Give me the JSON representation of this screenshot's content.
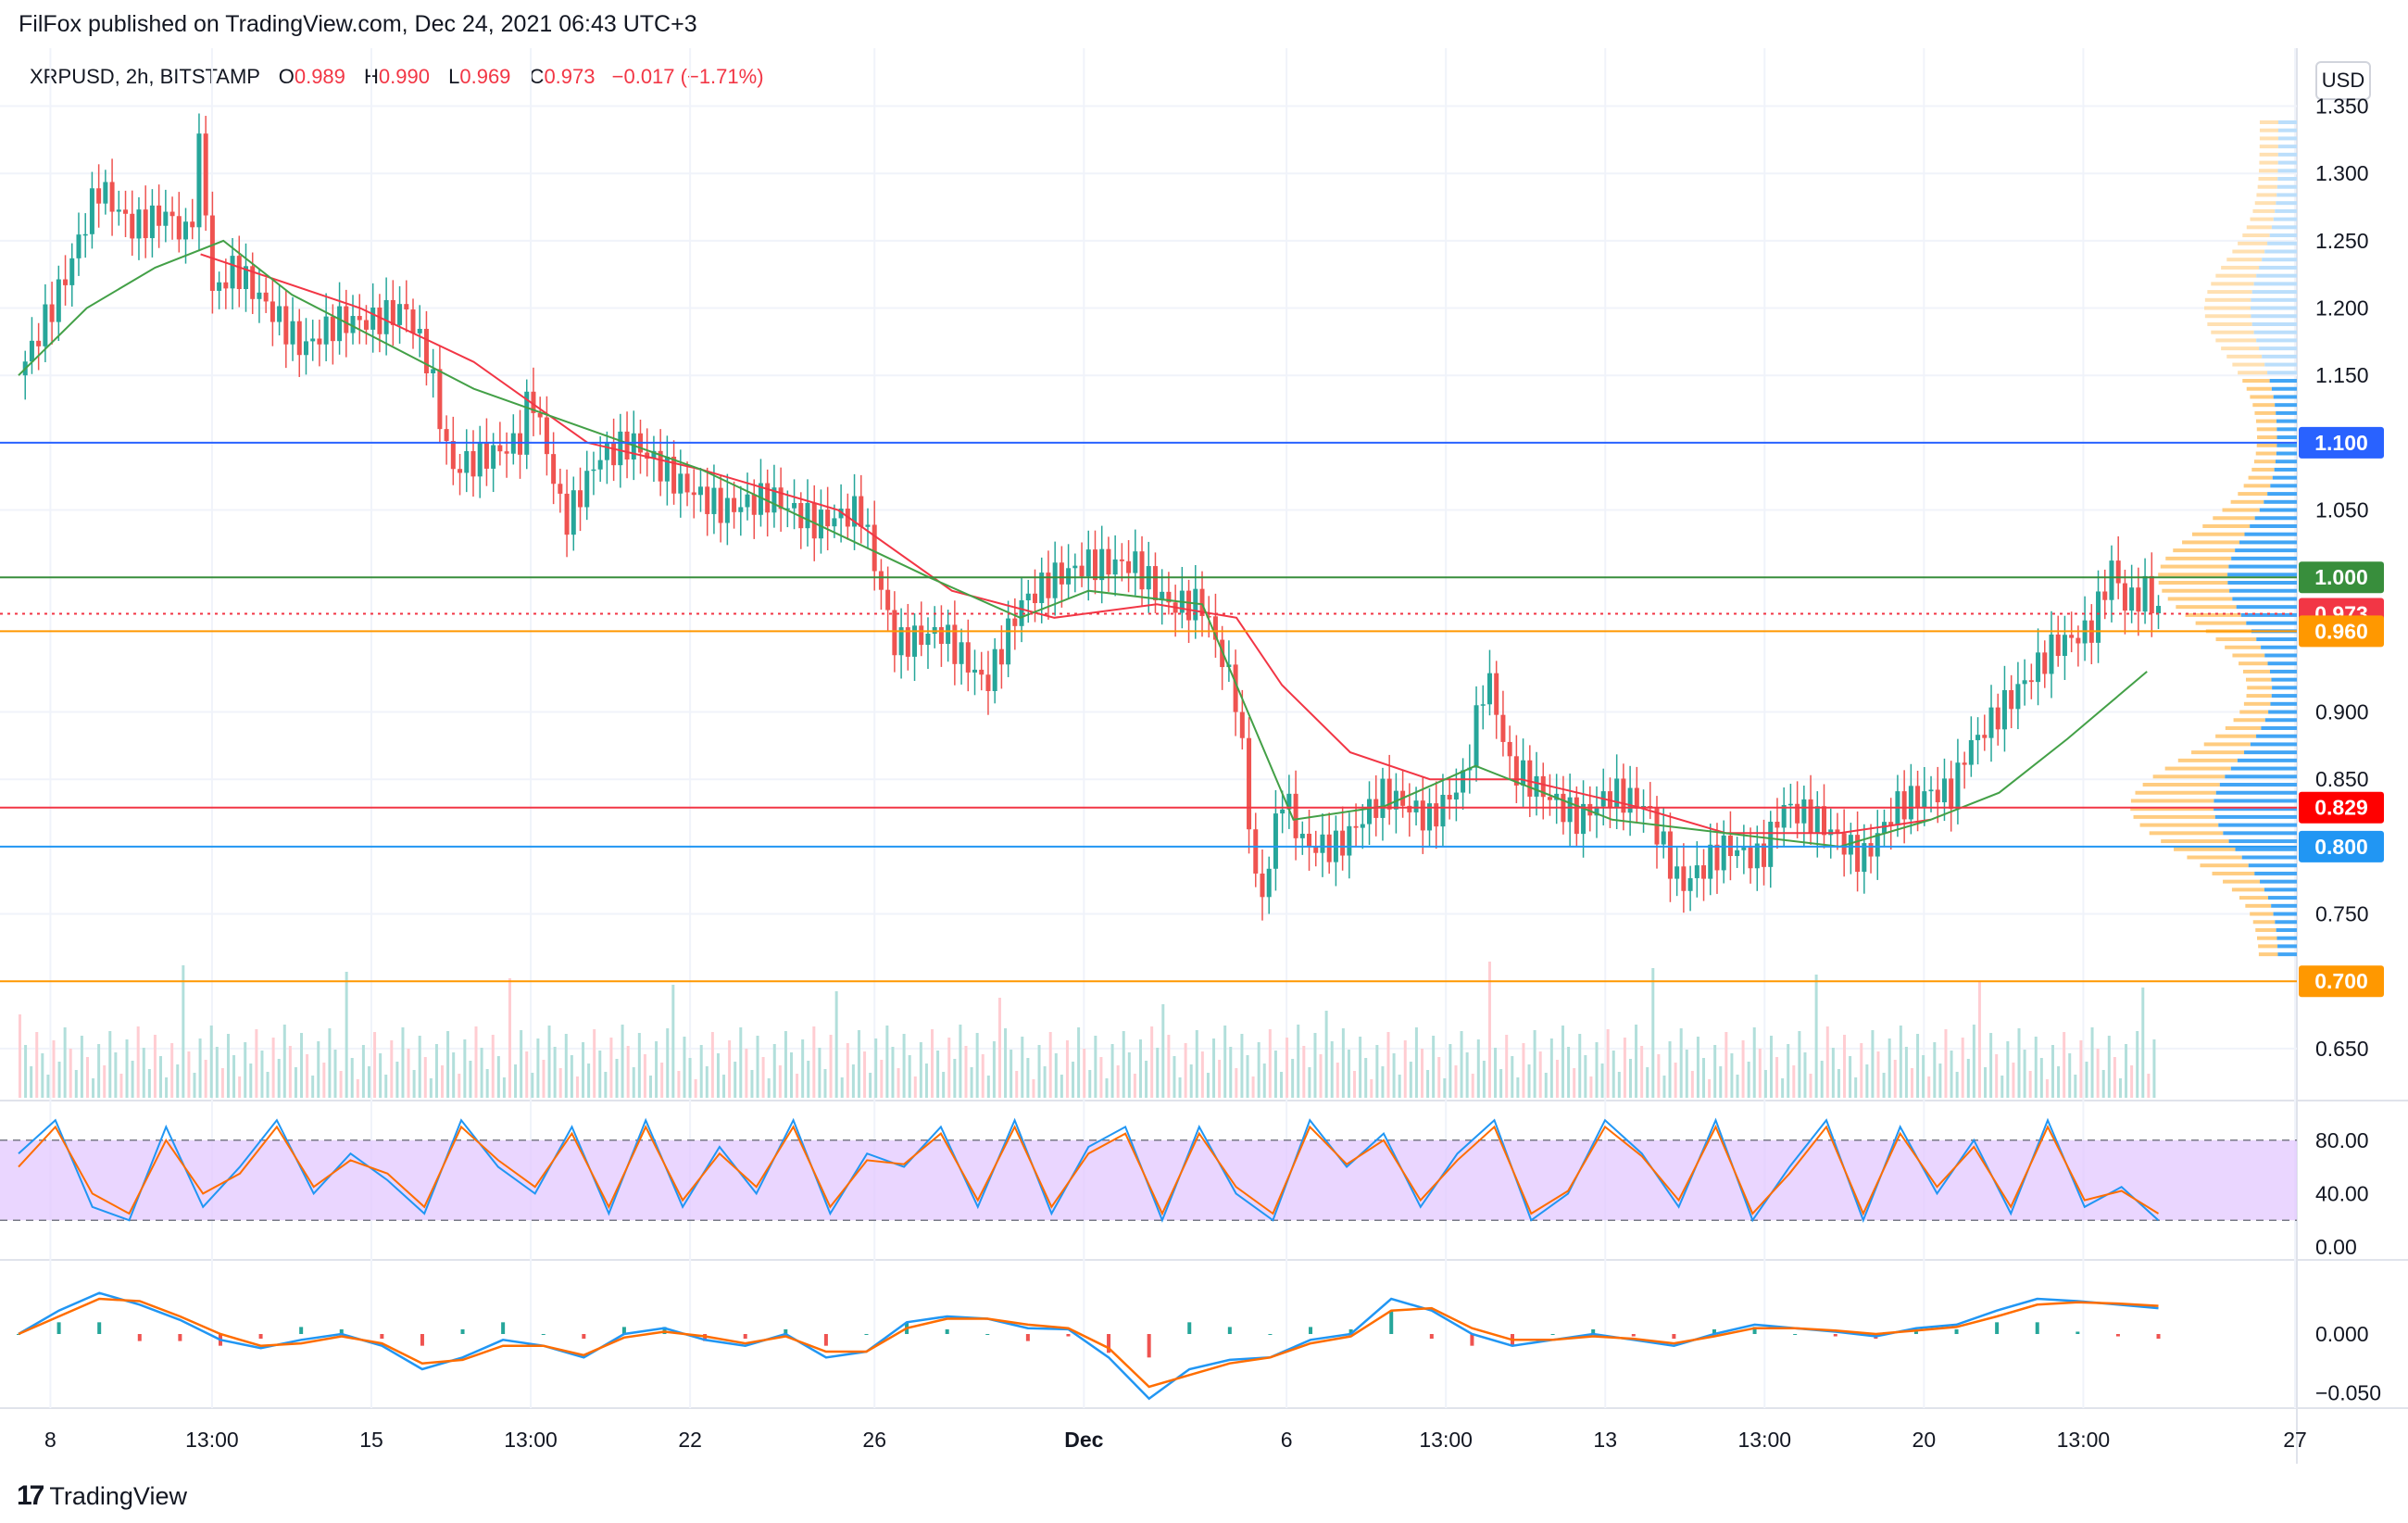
{
  "header": {
    "published": "FilFox published on TradingView.com, Dec 24, 2021 06:43 UTC+3"
  },
  "legend": {
    "symbol": "XRPUSD, 2h, BITSTAMP",
    "open_label": "O",
    "open": "0.989",
    "high_label": "H",
    "high": "0.990",
    "low_label": "L",
    "low": "0.969",
    "close_label": "C",
    "close": "0.973",
    "change": "−0.017 (−1.71%)"
  },
  "currency_button": "USD",
  "footer": {
    "brand": "TradingView",
    "logo": "17"
  },
  "chart_data": [
    {
      "type": "candlestick",
      "title": "XRPUSD, 2h, BITSTAMP",
      "ylim": [
        0.61,
        1.36
      ],
      "y_ticks": [
        "1.350",
        "1.300",
        "1.250",
        "1.200",
        "1.150",
        "1.050",
        "0.900",
        "0.850",
        "0.750",
        "0.650"
      ],
      "x_ticks": [
        "8",
        "13:00",
        "15",
        "13:00",
        "22",
        "26",
        "Dec",
        "6",
        "13:00",
        "13",
        "13:00",
        "20",
        "13:00",
        "27"
      ],
      "x_tick_pos": [
        0.014,
        0.085,
        0.155,
        0.225,
        0.295,
        0.376,
        0.468,
        0.557,
        0.627,
        0.697,
        0.767,
        0.837,
        0.907,
        1.0
      ],
      "price_path": [
        [
          0.0,
          1.15
        ],
        [
          0.02,
          1.22
        ],
        [
          0.035,
          1.29
        ],
        [
          0.05,
          1.26
        ],
        [
          0.065,
          1.27
        ],
        [
          0.075,
          1.25
        ],
        [
          0.08,
          1.33
        ],
        [
          0.085,
          1.21
        ],
        [
          0.095,
          1.23
        ],
        [
          0.11,
          1.2
        ],
        [
          0.125,
          1.17
        ],
        [
          0.14,
          1.19
        ],
        [
          0.155,
          1.19
        ],
        [
          0.17,
          1.2
        ],
        [
          0.18,
          1.16
        ],
        [
          0.19,
          1.08
        ],
        [
          0.205,
          1.09
        ],
        [
          0.22,
          1.1
        ],
        [
          0.225,
          1.14
        ],
        [
          0.24,
          1.04
        ],
        [
          0.255,
          1.09
        ],
        [
          0.27,
          1.1
        ],
        [
          0.29,
          1.07
        ],
        [
          0.31,
          1.05
        ],
        [
          0.33,
          1.06
        ],
        [
          0.35,
          1.04
        ],
        [
          0.37,
          1.05
        ],
        [
          0.385,
          0.95
        ],
        [
          0.405,
          0.96
        ],
        [
          0.425,
          0.92
        ],
        [
          0.44,
          0.98
        ],
        [
          0.455,
          1.0
        ],
        [
          0.47,
          1.01
        ],
        [
          0.49,
          1.01
        ],
        [
          0.505,
          0.98
        ],
        [
          0.52,
          0.98
        ],
        [
          0.535,
          0.91
        ],
        [
          0.545,
          0.75
        ],
        [
          0.555,
          0.84
        ],
        [
          0.565,
          0.8
        ],
        [
          0.58,
          0.8
        ],
        [
          0.6,
          0.84
        ],
        [
          0.62,
          0.82
        ],
        [
          0.635,
          0.85
        ],
        [
          0.645,
          0.93
        ],
        [
          0.655,
          0.86
        ],
        [
          0.67,
          0.84
        ],
        [
          0.685,
          0.82
        ],
        [
          0.7,
          0.84
        ],
        [
          0.715,
          0.83
        ],
        [
          0.73,
          0.77
        ],
        [
          0.75,
          0.8
        ],
        [
          0.765,
          0.79
        ],
        [
          0.775,
          0.83
        ],
        [
          0.79,
          0.82
        ],
        [
          0.81,
          0.79
        ],
        [
          0.825,
          0.83
        ],
        [
          0.84,
          0.84
        ],
        [
          0.85,
          0.84
        ],
        [
          0.855,
          0.87
        ],
        [
          0.87,
          0.9
        ],
        [
          0.885,
          0.93
        ],
        [
          0.895,
          0.95
        ],
        [
          0.91,
          0.96
        ],
        [
          0.92,
          1.01
        ],
        [
          0.925,
          0.98
        ],
        [
          0.935,
          0.99
        ],
        [
          0.94,
          0.973
        ]
      ],
      "moving_averages": [
        {
          "color": "#f23645",
          "points": [
            [
              0.08,
              1.24
            ],
            [
              0.15,
              1.2
            ],
            [
              0.2,
              1.16
            ],
            [
              0.25,
              1.1
            ],
            [
              0.3,
              1.08
            ],
            [
              0.36,
              1.05
            ],
            [
              0.41,
              0.99
            ],
            [
              0.455,
              0.97
            ],
            [
              0.5,
              0.98
            ],
            [
              0.535,
              0.97
            ],
            [
              0.555,
              0.92
            ],
            [
              0.585,
              0.87
            ],
            [
              0.62,
              0.85
            ],
            [
              0.66,
              0.85
            ],
            [
              0.71,
              0.83
            ],
            [
              0.75,
              0.81
            ],
            [
              0.8,
              0.81
            ],
            [
              0.84,
              0.82
            ]
          ]
        },
        {
          "color": "#43a047",
          "points": [
            [
              0.0,
              1.15
            ],
            [
              0.03,
              1.2
            ],
            [
              0.06,
              1.23
            ],
            [
              0.09,
              1.25
            ],
            [
              0.12,
              1.21
            ],
            [
              0.2,
              1.14
            ],
            [
              0.3,
              1.08
            ],
            [
              0.4,
              1.0
            ],
            [
              0.44,
              0.97
            ],
            [
              0.47,
              0.99
            ],
            [
              0.52,
              0.98
            ],
            [
              0.56,
              0.82
            ],
            [
              0.6,
              0.83
            ],
            [
              0.64,
              0.86
            ],
            [
              0.7,
              0.82
            ],
            [
              0.8,
              0.8
            ],
            [
              0.84,
              0.82
            ],
            [
              0.87,
              0.84
            ],
            [
              0.9,
              0.88
            ],
            [
              0.935,
              0.93
            ]
          ]
        }
      ],
      "levels": [
        {
          "value": 1.1,
          "label": "1.100",
          "color": "#2962ff",
          "style": "solid"
        },
        {
          "value": 1.0,
          "label": "1.000",
          "color": "#388e3c",
          "style": "solid"
        },
        {
          "value": 0.973,
          "label": "0.973",
          "color": "#f23645",
          "style": "dotted"
        },
        {
          "value": 0.96,
          "label": "0.960",
          "color": "#ff9800",
          "style": "solid"
        },
        {
          "value": 0.829,
          "label": "0.829",
          "color": "#f23645",
          "style": "solid",
          "badge": "#ff0000"
        },
        {
          "value": 0.8,
          "label": "0.800",
          "color": "#2196f3",
          "style": "solid"
        },
        {
          "value": 0.7,
          "label": "0.700",
          "color": "#ff9800",
          "style": "solid"
        }
      ],
      "volume_profile_note_colors": {
        "up": "#42a5f5",
        "down": "#ffb74d"
      }
    },
    {
      "type": "line",
      "title": "",
      "ylim": [
        0,
        100
      ],
      "y_ticks": [
        "80.00",
        "40.00",
        "0.00"
      ],
      "band": [
        20,
        80
      ],
      "band_color": "#e1c4ff",
      "series": [
        {
          "color": "#2196f3",
          "values": [
            70,
            95,
            30,
            20,
            90,
            30,
            60,
            95,
            40,
            70,
            50,
            25,
            95,
            60,
            40,
            90,
            25,
            95,
            30,
            75,
            40,
            95,
            25,
            70,
            60,
            90,
            30,
            95,
            25,
            75,
            90,
            20,
            90,
            40,
            20,
            95,
            60,
            85,
            30,
            70,
            95,
            20,
            40,
            95,
            70,
            30,
            95,
            20,
            60,
            95,
            20,
            90,
            40,
            80,
            25,
            95,
            30,
            45,
            20
          ]
        },
        {
          "color": "#ff6d00",
          "values": [
            60,
            90,
            40,
            25,
            80,
            40,
            55,
            90,
            45,
            65,
            55,
            30,
            90,
            65,
            45,
            85,
            30,
            90,
            35,
            70,
            45,
            90,
            30,
            65,
            62,
            85,
            35,
            90,
            30,
            70,
            85,
            25,
            85,
            45,
            25,
            90,
            62,
            80,
            35,
            65,
            90,
            25,
            42,
            90,
            68,
            35,
            90,
            25,
            55,
            90,
            25,
            85,
            45,
            75,
            30,
            90,
            35,
            42,
            25
          ]
        }
      ]
    },
    {
      "type": "line",
      "title": "",
      "ylim": [
        -0.06,
        0.06
      ],
      "y_ticks": [
        "0.000",
        "−0.050"
      ],
      "series": [
        {
          "color": "#2196f3",
          "values": [
            0.0,
            0.02,
            0.035,
            0.025,
            0.012,
            -0.005,
            -0.012,
            -0.005,
            0.0,
            -0.01,
            -0.03,
            -0.02,
            -0.005,
            -0.01,
            -0.02,
            0.0,
            0.005,
            -0.005,
            -0.01,
            0.0,
            -0.02,
            -0.015,
            0.01,
            0.015,
            0.013,
            0.005,
            0.004,
            -0.02,
            -0.055,
            -0.03,
            -0.022,
            -0.02,
            -0.005,
            0.0,
            0.03,
            0.02,
            0.0,
            -0.01,
            -0.005,
            0.0,
            -0.005,
            -0.01,
            0.0,
            0.008,
            0.005,
            0.002,
            -0.002,
            0.005,
            0.008,
            0.02,
            0.03,
            0.028,
            0.025,
            0.022
          ]
        },
        {
          "color": "#ff6d00",
          "values": [
            0.0,
            0.015,
            0.03,
            0.028,
            0.015,
            0.0,
            -0.01,
            -0.008,
            -0.002,
            -0.008,
            -0.025,
            -0.022,
            -0.01,
            -0.01,
            -0.018,
            -0.003,
            0.002,
            -0.002,
            -0.008,
            -0.002,
            -0.015,
            -0.015,
            0.005,
            0.013,
            0.013,
            0.008,
            0.005,
            -0.012,
            -0.045,
            -0.035,
            -0.025,
            -0.02,
            -0.008,
            -0.002,
            0.02,
            0.022,
            0.005,
            -0.005,
            -0.005,
            -0.002,
            -0.004,
            -0.008,
            -0.002,
            0.005,
            0.005,
            0.003,
            0.0,
            0.003,
            0.006,
            0.015,
            0.025,
            0.027,
            0.026,
            0.024
          ]
        }
      ]
    }
  ]
}
